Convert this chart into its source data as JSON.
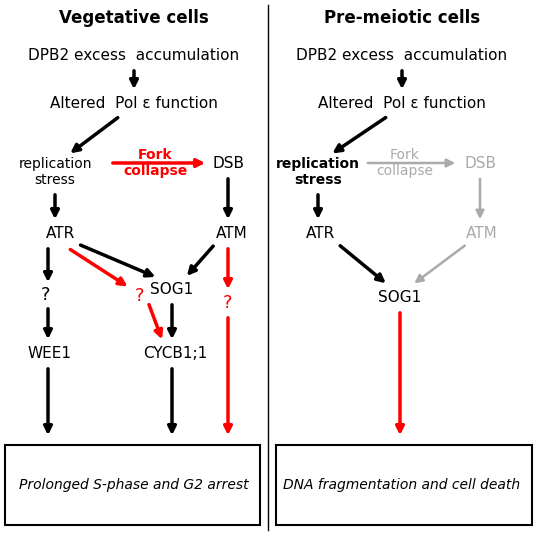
{
  "fig_width": 5.36,
  "fig_height": 5.38,
  "dpi": 100,
  "bg_color": "#ffffff",
  "left_title": "Vegetative cells",
  "right_title": "Pre-meiotic cells",
  "left_box_text": "Prolonged S-phase and G2 arrest",
  "right_box_text": "DNA fragmentation and cell death",
  "black": "#000000",
  "red": "#ff0000",
  "gray": "#aaaaaa"
}
